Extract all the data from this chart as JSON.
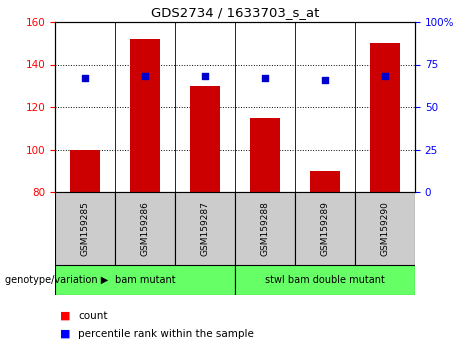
{
  "title": "GDS2734 / 1633703_s_at",
  "samples": [
    "GSM159285",
    "GSM159286",
    "GSM159287",
    "GSM159288",
    "GSM159289",
    "GSM159290"
  ],
  "counts": [
    100,
    152,
    130,
    115,
    90,
    150
  ],
  "percentile_ranks": [
    67,
    68,
    68,
    67,
    66,
    68
  ],
  "ylim_left": [
    80,
    160
  ],
  "ylim_right": [
    0,
    100
  ],
  "yticks_left": [
    80,
    100,
    120,
    140,
    160
  ],
  "yticks_right": [
    0,
    25,
    50,
    75,
    100
  ],
  "bar_color": "#cc0000",
  "bar_bottom": 80,
  "dot_color": "#0000cc",
  "group_info": [
    {
      "label": "bam mutant",
      "start": 0,
      "end": 2
    },
    {
      "label": "stwl bam double mutant",
      "start": 3,
      "end": 5
    }
  ],
  "group_bg_color": "#66ff66",
  "sample_bg_color": "#cccccc",
  "group_label": "genotype/variation",
  "legend_count_label": "count",
  "legend_percentile_label": "percentile rank within the sample"
}
